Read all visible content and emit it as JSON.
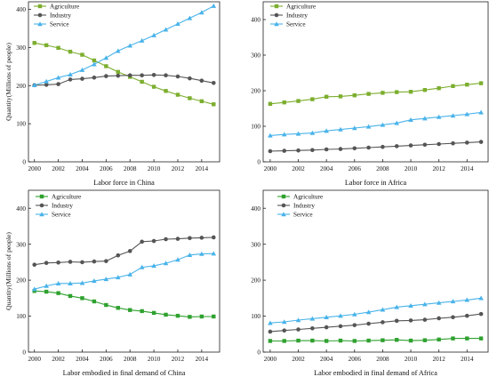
{
  "chart_data": [
    {
      "type": "line",
      "title": "Labor force in China",
      "ylabel": "Quantity(Millions of people)",
      "xlabel": "",
      "x": [
        2000,
        2001,
        2002,
        2003,
        2004,
        2005,
        2006,
        2007,
        2008,
        2009,
        2010,
        2011,
        2012,
        2013,
        2014,
        2015
      ],
      "xticks": [
        2000,
        2002,
        2004,
        2006,
        2008,
        2010,
        2012,
        2014
      ],
      "yticks": [
        0,
        100,
        200,
        300,
        400
      ],
      "xlim": [
        1999.5,
        2015.5
      ],
      "ylim": [
        0,
        420
      ],
      "legend_position": "top-left",
      "series": [
        {
          "name": "Agriculture",
          "color": "#7cae2e",
          "marker": "square",
          "values": [
            312,
            306,
            299,
            289,
            281,
            266,
            251,
            236,
            223,
            210,
            197,
            186,
            176,
            167,
            159,
            151
          ]
        },
        {
          "name": "Industry",
          "color": "#555555",
          "marker": "circle",
          "values": [
            201,
            202,
            204,
            216,
            218,
            221,
            225,
            226,
            227,
            227,
            228,
            227,
            224,
            219,
            213,
            207
          ]
        },
        {
          "name": "Service",
          "color": "#49b3ea",
          "marker": "triangle",
          "values": [
            201,
            211,
            221,
            229,
            241,
            256,
            273,
            291,
            305,
            318,
            332,
            347,
            362,
            377,
            392,
            409
          ]
        }
      ]
    },
    {
      "type": "line",
      "title": "Labor force in Africa",
      "ylabel": "",
      "xlabel": "",
      "x": [
        2000,
        2001,
        2002,
        2003,
        2004,
        2005,
        2006,
        2007,
        2008,
        2009,
        2010,
        2011,
        2012,
        2013,
        2014,
        2015
      ],
      "xticks": [
        2000,
        2002,
        2004,
        2006,
        2008,
        2010,
        2012,
        2014
      ],
      "yticks": [
        0,
        100,
        200,
        300,
        400
      ],
      "xlim": [
        1999.5,
        2015.5
      ],
      "ylim": [
        0,
        450
      ],
      "legend_position": "top-left",
      "series": [
        {
          "name": "Agriculture",
          "color": "#7cae2e",
          "marker": "square",
          "values": [
            163,
            167,
            171,
            176,
            183,
            184,
            187,
            191,
            194,
            196,
            197,
            202,
            207,
            213,
            217,
            221
          ]
        },
        {
          "name": "Industry",
          "color": "#555555",
          "marker": "circle",
          "values": [
            30,
            31,
            32,
            33,
            35,
            36,
            38,
            40,
            42,
            44,
            46,
            48,
            50,
            52,
            54,
            56
          ]
        },
        {
          "name": "Service",
          "color": "#49b3ea",
          "marker": "triangle",
          "values": [
            74,
            77,
            79,
            81,
            87,
            91,
            95,
            99,
            104,
            109,
            118,
            122,
            126,
            130,
            134,
            139
          ]
        }
      ]
    },
    {
      "type": "line",
      "title": "Labor embodied in final demand of China",
      "ylabel": "Quantity(Millions of people)",
      "xlabel": "",
      "x": [
        2000,
        2001,
        2002,
        2003,
        2004,
        2005,
        2006,
        2007,
        2008,
        2009,
        2010,
        2011,
        2012,
        2013,
        2014,
        2015
      ],
      "xticks": [
        2000,
        2002,
        2004,
        2006,
        2008,
        2010,
        2012,
        2014
      ],
      "yticks": [
        0,
        100,
        200,
        300,
        400
      ],
      "xlim": [
        1999.5,
        2015.5
      ],
      "ylim": [
        0,
        450
      ],
      "legend_position": "top-left",
      "series": [
        {
          "name": "Agriculture",
          "color": "#2fa12f",
          "marker": "square",
          "values": [
            170,
            168,
            164,
            156,
            150,
            141,
            131,
            123,
            117,
            114,
            109,
            104,
            101,
            98,
            99,
            99
          ]
        },
        {
          "name": "Industry",
          "color": "#555555",
          "marker": "circle",
          "values": [
            243,
            248,
            249,
            251,
            250,
            252,
            253,
            269,
            281,
            307,
            309,
            314,
            315,
            317,
            318,
            319
          ]
        },
        {
          "name": "Service",
          "color": "#49b3ea",
          "marker": "triangle",
          "values": [
            175,
            184,
            191,
            191,
            192,
            198,
            203,
            208,
            216,
            236,
            240,
            247,
            257,
            270,
            273,
            274
          ]
        }
      ]
    },
    {
      "type": "line",
      "title": "Labor embodied in final demand of Africa",
      "ylabel": "",
      "xlabel": "",
      "x": [
        2000,
        2001,
        2002,
        2003,
        2004,
        2005,
        2006,
        2007,
        2008,
        2009,
        2010,
        2011,
        2012,
        2013,
        2014,
        2015
      ],
      "xticks": [
        2000,
        2002,
        2004,
        2006,
        2008,
        2010,
        2012,
        2014
      ],
      "yticks": [
        0,
        100,
        200,
        300,
        400
      ],
      "xlim": [
        1999.5,
        2015.5
      ],
      "ylim": [
        0,
        450
      ],
      "legend_position": "top-left",
      "series": [
        {
          "name": "Agriculture",
          "color": "#2fa12f",
          "marker": "square",
          "values": [
            31,
            31,
            32,
            32,
            31,
            32,
            31,
            32,
            33,
            34,
            32,
            33,
            35,
            38,
            38,
            38
          ]
        },
        {
          "name": "Industry",
          "color": "#555555",
          "marker": "circle",
          "values": [
            57,
            60,
            63,
            66,
            69,
            72,
            75,
            79,
            83,
            87,
            88,
            90,
            94,
            97,
            101,
            106
          ]
        },
        {
          "name": "Service",
          "color": "#49b3ea",
          "marker": "triangle",
          "values": [
            81,
            84,
            89,
            93,
            97,
            101,
            105,
            111,
            118,
            125,
            129,
            133,
            137,
            141,
            145,
            150
          ]
        }
      ]
    }
  ]
}
